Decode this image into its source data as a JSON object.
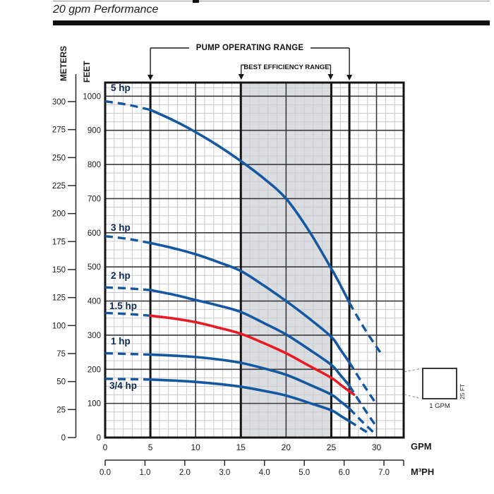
{
  "page": {
    "title": "20 gpm Performance"
  },
  "axes": {
    "left_outer": {
      "label": "METERS",
      "ticks": [
        300,
        275,
        250,
        225,
        200,
        175,
        150,
        125,
        100,
        75,
        50,
        25,
        0
      ]
    },
    "left_inner": {
      "label": "FEET",
      "ticks": [
        1000,
        900,
        800,
        700,
        600,
        500,
        400,
        300,
        200,
        100,
        0
      ]
    },
    "bottom_primary": {
      "label": "GPM",
      "ticks": [
        0,
        5,
        10,
        15,
        20,
        25,
        30
      ]
    },
    "bottom_secondary": {
      "label": "M³PH",
      "ticks": [
        "0.0",
        "1.0",
        "2.0",
        "3.0",
        "4.0",
        "5.0",
        "6.0",
        "7.0"
      ]
    }
  },
  "annotations": {
    "pump_operating_range": {
      "label": "PUMP OPERATING RANGE",
      "from_gpm": 5,
      "to_gpm": 27
    },
    "best_efficiency_range": {
      "label": "BEST EFFICIENCY RANGE",
      "from_gpm": 15,
      "to_gpm": 25
    }
  },
  "legend": {
    "width_label": "1 GPM",
    "height_label": "25 FT"
  },
  "colors": {
    "curve_blue": "#1558a2",
    "curve_red": "#e81b23",
    "shading": "#dcdde0",
    "grid_minor": "#c8cbce",
    "grid_major": "#3a3a3e",
    "grid_heavy": "#141414",
    "text": "#1c1c1c"
  },
  "chart_data": {
    "type": "line",
    "title": "20 gpm Performance",
    "xlabel": "GPM",
    "x2label": "M³PH",
    "ylabel": "FEET",
    "y2label": "METERS",
    "xlim": [
      0,
      33
    ],
    "ylim": [
      0,
      1040
    ],
    "x_major_step": 5,
    "x_minor_step": 1,
    "y_major_step": 100,
    "y_minor_step": 25,
    "heavy_gridlines_gpm": [
      5,
      15,
      25,
      27
    ],
    "shaded_region_gpm": [
      15,
      25
    ],
    "m3ph_per_gpm": 0.22712,
    "series": [
      {
        "name": "5 hp",
        "color": "#1558a2",
        "head": [
          [
            0,
            985
          ],
          [
            2.5,
            975
          ],
          [
            5,
            960
          ]
        ],
        "solid": [
          [
            5,
            960
          ],
          [
            7.5,
            930
          ],
          [
            10,
            895
          ],
          [
            12.5,
            855
          ],
          [
            15,
            810
          ],
          [
            17.5,
            760
          ],
          [
            20,
            700
          ],
          [
            22.5,
            607
          ],
          [
            25,
            495
          ],
          [
            26,
            447
          ],
          [
            27,
            395
          ]
        ],
        "tail": [
          [
            27,
            395
          ],
          [
            28.6,
            322
          ],
          [
            30.4,
            250
          ]
        ]
      },
      {
        "name": "3 hp",
        "color": "#1558a2",
        "head": [
          [
            0,
            590
          ],
          [
            2.5,
            582
          ],
          [
            5,
            570
          ]
        ],
        "solid": [
          [
            5,
            570
          ],
          [
            7.5,
            555
          ],
          [
            10,
            537
          ],
          [
            12.5,
            514
          ],
          [
            15,
            488
          ],
          [
            17.5,
            446
          ],
          [
            20,
            400
          ],
          [
            22.5,
            350
          ],
          [
            25,
            295
          ],
          [
            26,
            258
          ],
          [
            27,
            220
          ]
        ],
        "tail": [
          [
            27,
            220
          ],
          [
            28.5,
            157
          ],
          [
            30,
            97
          ]
        ]
      },
      {
        "name": "2 hp",
        "color": "#1558a2",
        "head": [
          [
            0,
            440
          ],
          [
            2.5,
            437
          ],
          [
            5,
            432
          ]
        ],
        "solid": [
          [
            5,
            432
          ],
          [
            7.5,
            419
          ],
          [
            10,
            403
          ],
          [
            12.5,
            387
          ],
          [
            15,
            368
          ],
          [
            17.5,
            336
          ],
          [
            20,
            302
          ],
          [
            22.5,
            259
          ],
          [
            25,
            213
          ],
          [
            26,
            183
          ],
          [
            27,
            152
          ]
        ],
        "tail": [
          [
            27,
            152
          ],
          [
            28.5,
            90
          ],
          [
            29.9,
            35
          ]
        ]
      },
      {
        "name": "1.5 hp",
        "color": "#e81b23",
        "head": [
          [
            0,
            365
          ],
          [
            2.5,
            362
          ],
          [
            5,
            357
          ]
        ],
        "solid": [
          [
            5,
            357
          ],
          [
            7.5,
            349
          ],
          [
            10,
            338
          ],
          [
            12.5,
            322
          ],
          [
            15,
            304
          ],
          [
            17.5,
            277
          ],
          [
            20,
            247
          ],
          [
            22.5,
            211
          ],
          [
            25,
            175
          ],
          [
            26.3,
            149
          ],
          [
            27.5,
            126
          ]
        ],
        "tail": []
      },
      {
        "name": "1 hp",
        "color": "#1558a2",
        "head": [
          [
            0,
            247
          ],
          [
            2.5,
            245
          ],
          [
            5,
            243
          ]
        ],
        "solid": [
          [
            5,
            243
          ],
          [
            7.5,
            240
          ],
          [
            10,
            236
          ],
          [
            12.5,
            229
          ],
          [
            15,
            219
          ],
          [
            17.5,
            203
          ],
          [
            20,
            184
          ],
          [
            22.5,
            156
          ],
          [
            25,
            126
          ],
          [
            26,
            106
          ],
          [
            27,
            85
          ]
        ],
        "tail": [
          [
            27,
            85
          ],
          [
            28.4,
            47
          ],
          [
            29.8,
            12
          ]
        ]
      },
      {
        "name": "3/4 hp",
        "color": "#1558a2",
        "head": [
          [
            0,
            172
          ],
          [
            2.5,
            171
          ],
          [
            5,
            170
          ]
        ],
        "solid": [
          [
            5,
            170
          ],
          [
            7.5,
            167
          ],
          [
            10,
            163
          ],
          [
            12.5,
            157
          ],
          [
            15,
            149
          ],
          [
            17.5,
            137
          ],
          [
            20,
            123
          ],
          [
            22.5,
            102
          ],
          [
            25,
            80
          ],
          [
            26,
            64
          ],
          [
            27,
            48
          ]
        ],
        "tail": [
          [
            27,
            48
          ],
          [
            28.2,
            28
          ],
          [
            29.3,
            10
          ]
        ]
      }
    ]
  }
}
